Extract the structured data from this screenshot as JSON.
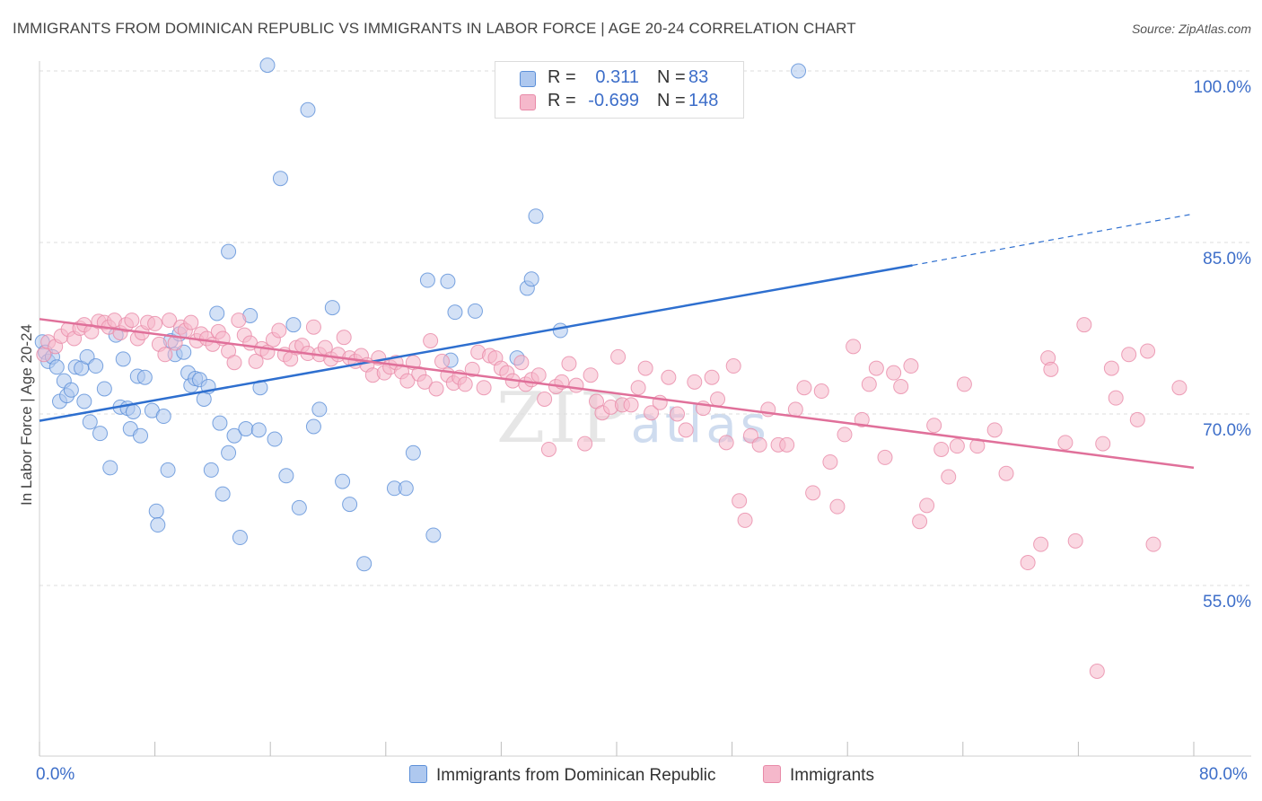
{
  "title": "IMMIGRANTS FROM DOMINICAN REPUBLIC VS IMMIGRANTS IN LABOR FORCE | AGE 20-24 CORRELATION CHART",
  "source": "Source: ZipAtlas.com",
  "watermark": "ZIPatlas",
  "legend": {
    "rows": [
      {
        "label": "R =",
        "r": "0.311",
        "n_label": "N =",
        "n": "83",
        "color": "#aec8ef"
      },
      {
        "label": "R =",
        "r": "-0.699",
        "n_label": "N = ",
        "n": "148",
        "color": "#f5b8cb"
      }
    ]
  },
  "bottom_legend": [
    {
      "label": "Immigrants from Dominican Republic",
      "color": "#aec8ef"
    },
    {
      "label": "Immigrants",
      "color": "#f5b8cb"
    }
  ],
  "colors": {
    "blue": "#5b8fd8",
    "blue_line": "#2e6fcf",
    "pink": "#e88aa8",
    "pink_line": "#e0709a",
    "axis_text": "#3d6ec9"
  },
  "chart_data": {
    "type": "scatter",
    "title": "IMMIGRANTS FROM DOMINICAN REPUBLIC VS IMMIGRANTS IN LABOR FORCE | AGE 20-24 CORRELATION CHART",
    "xlabel": "",
    "ylabel": "In Labor Force | Age 20-24",
    "xlim": [
      0,
      80
    ],
    "ylim": [
      40,
      101.5
    ],
    "x_tick_labels": [
      "0.0%",
      "80.0%"
    ],
    "y_ticks": [
      55,
      70,
      85,
      100
    ],
    "y_tick_labels": [
      "55.0%",
      "70.0%",
      "85.0%",
      "100.0%"
    ],
    "grid": true,
    "series": [
      {
        "name": "Immigrants from Dominican Republic",
        "color": "#aec8ef",
        "trend": {
          "x0": 0,
          "y0": 69.4,
          "x1": 60.5,
          "y1": 83.0,
          "dashed_to_x": 80,
          "dashed_to_y": 87.5
        },
        "points": [
          [
            0.2,
            76.3
          ],
          [
            0.4,
            75.4
          ],
          [
            0.6,
            74.6
          ],
          [
            0.9,
            75.0
          ],
          [
            1.2,
            74.1
          ],
          [
            1.4,
            71.1
          ],
          [
            1.7,
            72.9
          ],
          [
            1.9,
            71.6
          ],
          [
            2.2,
            72.1
          ],
          [
            2.5,
            74.1
          ],
          [
            2.9,
            74.0
          ],
          [
            3.1,
            71.1
          ],
          [
            3.3,
            75.0
          ],
          [
            3.5,
            69.3
          ],
          [
            3.9,
            74.2
          ],
          [
            4.2,
            68.3
          ],
          [
            4.5,
            72.2
          ],
          [
            4.9,
            65.3
          ],
          [
            5.3,
            76.9
          ],
          [
            5.6,
            70.6
          ],
          [
            5.8,
            74.8
          ],
          [
            6.1,
            70.5
          ],
          [
            6.3,
            68.7
          ],
          [
            6.5,
            70.2
          ],
          [
            6.8,
            73.3
          ],
          [
            7.0,
            68.1
          ],
          [
            7.3,
            73.2
          ],
          [
            7.8,
            70.3
          ],
          [
            8.1,
            61.5
          ],
          [
            8.2,
            60.3
          ],
          [
            8.6,
            69.8
          ],
          [
            8.9,
            65.1
          ],
          [
            9.1,
            76.4
          ],
          [
            9.4,
            75.2
          ],
          [
            9.7,
            77.0
          ],
          [
            10.0,
            75.4
          ],
          [
            10.3,
            73.6
          ],
          [
            10.5,
            72.5
          ],
          [
            10.8,
            73.1
          ],
          [
            11.1,
            73.0
          ],
          [
            11.4,
            71.3
          ],
          [
            11.7,
            72.4
          ],
          [
            11.9,
            65.1
          ],
          [
            12.3,
            78.8
          ],
          [
            12.5,
            69.2
          ],
          [
            12.7,
            63.0
          ],
          [
            13.1,
            66.6
          ],
          [
            13.1,
            84.2
          ],
          [
            13.5,
            68.1
          ],
          [
            13.9,
            59.2
          ],
          [
            14.3,
            68.7
          ],
          [
            14.6,
            78.6
          ],
          [
            15.2,
            68.6
          ],
          [
            15.3,
            72.3
          ],
          [
            16.3,
            67.8
          ],
          [
            16.7,
            90.6
          ],
          [
            17.1,
            64.6
          ],
          [
            17.6,
            77.8
          ],
          [
            18.0,
            61.8
          ],
          [
            18.6,
            96.6
          ],
          [
            19.0,
            68.9
          ],
          [
            19.4,
            70.4
          ],
          [
            20.3,
            79.3
          ],
          [
            21.0,
            64.1
          ],
          [
            21.5,
            62.1
          ],
          [
            22.5,
            56.9
          ],
          [
            24.6,
            63.5
          ],
          [
            25.4,
            63.5
          ],
          [
            25.9,
            66.6
          ],
          [
            26.9,
            81.7
          ],
          [
            27.3,
            59.4
          ],
          [
            28.3,
            81.6
          ],
          [
            28.5,
            74.7
          ],
          [
            28.8,
            78.9
          ],
          [
            30.2,
            79.0
          ],
          [
            33.1,
            74.9
          ],
          [
            33.8,
            81.0
          ],
          [
            34.1,
            81.8
          ],
          [
            34.4,
            87.3
          ],
          [
            36.1,
            77.3
          ],
          [
            52.6,
            100.0
          ],
          [
            15.8,
            100.5
          ]
        ]
      },
      {
        "name": "Immigrants",
        "color": "#f5b8cb",
        "trend": {
          "x0": 0,
          "y0": 78.3,
          "x1": 80,
          "y1": 65.3
        },
        "points": [
          [
            0.3,
            75.2
          ],
          [
            0.6,
            76.3
          ],
          [
            1.1,
            75.9
          ],
          [
            1.5,
            76.8
          ],
          [
            2.0,
            77.4
          ],
          [
            2.4,
            76.6
          ],
          [
            2.8,
            77.5
          ],
          [
            3.1,
            77.8
          ],
          [
            3.6,
            77.2
          ],
          [
            4.1,
            78.1
          ],
          [
            4.5,
            78.0
          ],
          [
            4.8,
            77.6
          ],
          [
            5.2,
            78.2
          ],
          [
            5.6,
            77.1
          ],
          [
            6.0,
            77.8
          ],
          [
            6.4,
            78.2
          ],
          [
            6.8,
            76.6
          ],
          [
            7.1,
            77.1
          ],
          [
            7.5,
            78.0
          ],
          [
            8.0,
            77.9
          ],
          [
            8.3,
            76.1
          ],
          [
            8.7,
            75.2
          ],
          [
            9.0,
            78.2
          ],
          [
            9.4,
            76.2
          ],
          [
            9.8,
            77.6
          ],
          [
            10.1,
            77.3
          ],
          [
            10.5,
            78.0
          ],
          [
            10.9,
            76.4
          ],
          [
            11.2,
            77.0
          ],
          [
            11.6,
            76.6
          ],
          [
            12.0,
            76.1
          ],
          [
            12.4,
            77.2
          ],
          [
            12.7,
            76.6
          ],
          [
            13.1,
            75.5
          ],
          [
            13.5,
            74.5
          ],
          [
            13.8,
            78.2
          ],
          [
            14.2,
            76.9
          ],
          [
            14.6,
            76.2
          ],
          [
            15.0,
            74.6
          ],
          [
            15.4,
            75.7
          ],
          [
            15.8,
            75.4
          ],
          [
            16.2,
            76.5
          ],
          [
            16.6,
            77.3
          ],
          [
            17.0,
            75.2
          ],
          [
            17.4,
            74.8
          ],
          [
            17.8,
            75.8
          ],
          [
            18.2,
            76.0
          ],
          [
            18.6,
            75.3
          ],
          [
            19.0,
            77.6
          ],
          [
            19.4,
            75.2
          ],
          [
            19.8,
            75.8
          ],
          [
            20.2,
            74.8
          ],
          [
            20.7,
            75.2
          ],
          [
            21.1,
            76.7
          ],
          [
            21.5,
            74.9
          ],
          [
            21.9,
            74.6
          ],
          [
            22.3,
            75.1
          ],
          [
            22.7,
            74.3
          ],
          [
            23.1,
            73.4
          ],
          [
            23.5,
            74.9
          ],
          [
            23.9,
            73.6
          ],
          [
            24.3,
            74.1
          ],
          [
            24.7,
            74.5
          ],
          [
            25.1,
            73.7
          ],
          [
            25.5,
            72.9
          ],
          [
            25.9,
            74.5
          ],
          [
            26.3,
            73.5
          ],
          [
            26.7,
            72.8
          ],
          [
            27.1,
            76.4
          ],
          [
            27.5,
            72.2
          ],
          [
            27.9,
            74.6
          ],
          [
            28.3,
            73.4
          ],
          [
            28.7,
            72.7
          ],
          [
            29.1,
            73.2
          ],
          [
            29.5,
            72.6
          ],
          [
            30.0,
            73.9
          ],
          [
            30.4,
            75.4
          ],
          [
            30.8,
            72.3
          ],
          [
            31.2,
            75.1
          ],
          [
            31.6,
            74.9
          ],
          [
            32.0,
            74.0
          ],
          [
            32.4,
            73.6
          ],
          [
            32.8,
            72.9
          ],
          [
            33.4,
            74.5
          ],
          [
            33.7,
            72.6
          ],
          [
            34.1,
            73.0
          ],
          [
            34.6,
            73.4
          ],
          [
            35.0,
            71.3
          ],
          [
            35.3,
            66.9
          ],
          [
            35.8,
            72.4
          ],
          [
            36.2,
            72.8
          ],
          [
            36.7,
            74.4
          ],
          [
            37.2,
            72.5
          ],
          [
            37.8,
            67.4
          ],
          [
            38.2,
            73.4
          ],
          [
            38.6,
            71.1
          ],
          [
            39.0,
            70.1
          ],
          [
            39.6,
            70.6
          ],
          [
            40.1,
            75.0
          ],
          [
            40.4,
            70.8
          ],
          [
            41.0,
            70.8
          ],
          [
            41.5,
            72.3
          ],
          [
            42.0,
            74.0
          ],
          [
            42.4,
            70.1
          ],
          [
            43.0,
            71.0
          ],
          [
            43.6,
            73.2
          ],
          [
            44.2,
            70.0
          ],
          [
            44.8,
            68.6
          ],
          [
            45.4,
            72.8
          ],
          [
            46.0,
            70.5
          ],
          [
            46.6,
            73.2
          ],
          [
            47.0,
            71.3
          ],
          [
            47.6,
            67.5
          ],
          [
            48.1,
            74.2
          ],
          [
            48.5,
            62.4
          ],
          [
            48.9,
            60.7
          ],
          [
            49.3,
            68.1
          ],
          [
            49.9,
            67.3
          ],
          [
            50.5,
            70.4
          ],
          [
            51.2,
            67.3
          ],
          [
            51.8,
            67.3
          ],
          [
            52.4,
            70.4
          ],
          [
            53.0,
            72.3
          ],
          [
            53.6,
            63.1
          ],
          [
            54.2,
            72.0
          ],
          [
            54.8,
            65.8
          ],
          [
            55.3,
            61.9
          ],
          [
            55.8,
            68.2
          ],
          [
            56.4,
            75.9
          ],
          [
            57.0,
            69.5
          ],
          [
            57.5,
            72.6
          ],
          [
            58.0,
            74.0
          ],
          [
            58.6,
            66.2
          ],
          [
            59.2,
            73.6
          ],
          [
            59.7,
            72.4
          ],
          [
            60.4,
            74.2
          ],
          [
            61.0,
            60.6
          ],
          [
            61.5,
            62.0
          ],
          [
            62.0,
            69.0
          ],
          [
            62.5,
            66.9
          ],
          [
            63.0,
            64.5
          ],
          [
            63.6,
            67.2
          ],
          [
            64.1,
            72.6
          ],
          [
            65.0,
            67.2
          ],
          [
            66.2,
            68.6
          ],
          [
            67.0,
            64.8
          ],
          [
            68.5,
            57.0
          ],
          [
            69.4,
            58.6
          ],
          [
            69.9,
            74.9
          ],
          [
            70.1,
            73.9
          ],
          [
            71.1,
            67.5
          ],
          [
            71.8,
            58.9
          ],
          [
            72.4,
            77.8
          ],
          [
            73.3,
            47.5
          ],
          [
            73.7,
            67.4
          ],
          [
            74.3,
            74.0
          ],
          [
            74.6,
            71.4
          ],
          [
            75.5,
            75.2
          ],
          [
            76.1,
            69.5
          ],
          [
            76.8,
            75.5
          ],
          [
            77.2,
            58.6
          ],
          [
            79.0,
            72.3
          ]
        ]
      }
    ]
  }
}
